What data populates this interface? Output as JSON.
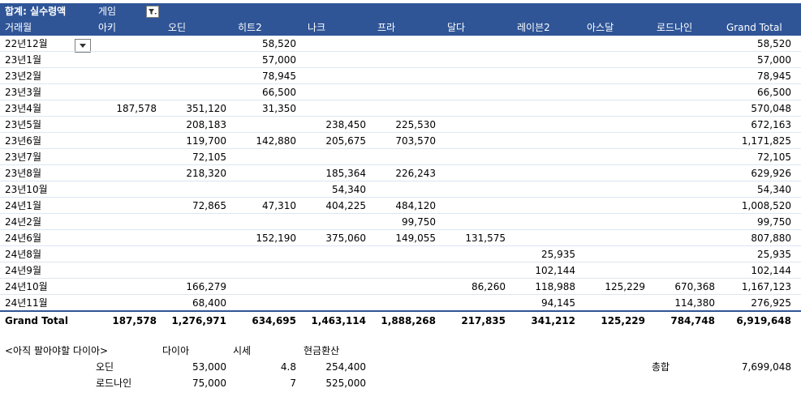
{
  "pivot": {
    "value_field": "합계: 실수령액",
    "column_field": "게임",
    "row_field": "거래월",
    "columns": [
      "아키",
      "오딘",
      "히트2",
      "나크",
      "프라",
      "달다",
      "레이븐2",
      "아스달",
      "로드나인",
      "Grand Total"
    ],
    "rows": [
      {
        "label": "22년12월",
        "values": [
          "",
          "",
          "58,520",
          "",
          "",
          "",
          "",
          "",
          "",
          "58,520"
        ]
      },
      {
        "label": "23년1월",
        "values": [
          "",
          "",
          "57,000",
          "",
          "",
          "",
          "",
          "",
          "",
          "57,000"
        ]
      },
      {
        "label": "23년2월",
        "values": [
          "",
          "",
          "78,945",
          "",
          "",
          "",
          "",
          "",
          "",
          "78,945"
        ]
      },
      {
        "label": "23년3월",
        "values": [
          "",
          "",
          "66,500",
          "",
          "",
          "",
          "",
          "",
          "",
          "66,500"
        ]
      },
      {
        "label": "23년4월",
        "values": [
          "187,578",
          "351,120",
          "31,350",
          "",
          "",
          "",
          "",
          "",
          "",
          "570,048"
        ]
      },
      {
        "label": "23년5월",
        "values": [
          "",
          "208,183",
          "",
          "238,450",
          "225,530",
          "",
          "",
          "",
          "",
          "672,163"
        ]
      },
      {
        "label": "23년6월",
        "values": [
          "",
          "119,700",
          "142,880",
          "205,675",
          "703,570",
          "",
          "",
          "",
          "",
          "1,171,825"
        ]
      },
      {
        "label": "23년7월",
        "values": [
          "",
          "72,105",
          "",
          "",
          "",
          "",
          "",
          "",
          "",
          "72,105"
        ]
      },
      {
        "label": "23년8월",
        "values": [
          "",
          "218,320",
          "",
          "185,364",
          "226,243",
          "",
          "",
          "",
          "",
          "629,926"
        ]
      },
      {
        "label": "23년10월",
        "values": [
          "",
          "",
          "",
          "54,340",
          "",
          "",
          "",
          "",
          "",
          "54,340"
        ]
      },
      {
        "label": "24년1월",
        "values": [
          "",
          "72,865",
          "47,310",
          "404,225",
          "484,120",
          "",
          "",
          "",
          "",
          "1,008,520"
        ]
      },
      {
        "label": "24년2월",
        "values": [
          "",
          "",
          "",
          "",
          "99,750",
          "",
          "",
          "",
          "",
          "99,750"
        ]
      },
      {
        "label": "24년6월",
        "values": [
          "",
          "",
          "152,190",
          "375,060",
          "149,055",
          "131,575",
          "",
          "",
          "",
          "807,880"
        ]
      },
      {
        "label": "24년8월",
        "values": [
          "",
          "",
          "",
          "",
          "",
          "",
          "25,935",
          "",
          "",
          "25,935"
        ]
      },
      {
        "label": "24년9월",
        "values": [
          "",
          "",
          "",
          "",
          "",
          "",
          "102,144",
          "",
          "",
          "102,144"
        ]
      },
      {
        "label": "24년10월",
        "values": [
          "",
          "166,279",
          "",
          "",
          "",
          "86,260",
          "118,988",
          "125,229",
          "670,368",
          "1,167,123"
        ]
      },
      {
        "label": "24년11월",
        "values": [
          "",
          "68,400",
          "",
          "",
          "",
          "",
          "94,145",
          "",
          "114,380",
          "276,925"
        ]
      }
    ],
    "grand_total": {
      "label": "Grand Total",
      "values": [
        "187,578",
        "1,276,971",
        "634,695",
        "1,463,114",
        "1,888,268",
        "217,835",
        "341,212",
        "125,229",
        "784,748",
        "6,919,648"
      ]
    }
  },
  "extra": {
    "title": "<아직 팔아야할 다이아>",
    "headers": [
      "다이아",
      "시세",
      "현금환산"
    ],
    "items": [
      {
        "name": "오딘",
        "diamonds": "53,000",
        "price": "4.8",
        "cash": "254,400"
      },
      {
        "name": "로드나인",
        "diamonds": "75,000",
        "price": "7",
        "cash": "525,000"
      }
    ],
    "total_label": "총합",
    "total_value": "7,699,048"
  },
  "colors": {
    "header_bg": "#2f5597",
    "row_border": "#dce6f1"
  },
  "icons": {
    "filter": "filter-icon",
    "dropdown": "chevron-down-icon"
  }
}
